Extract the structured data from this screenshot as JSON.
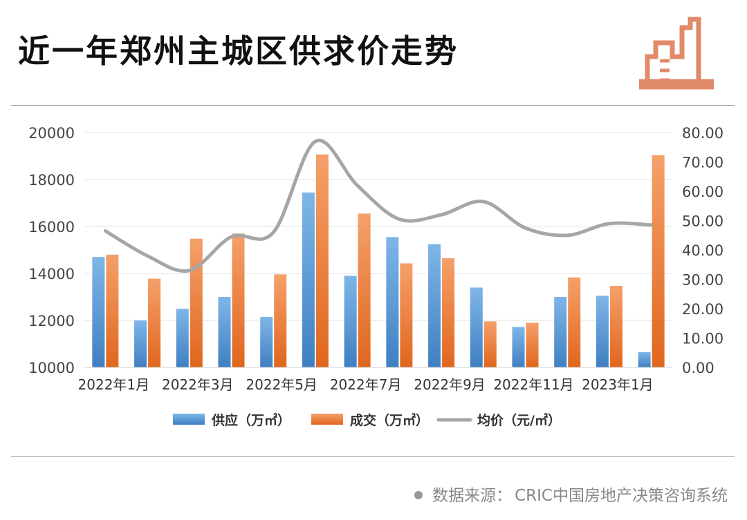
{
  "title": "近一年郑州主城区供求价走势",
  "source": {
    "label": "数据来源：",
    "text": "CRIC中国房地产决策咨询系统"
  },
  "colors": {
    "supply": "#5b9bd5",
    "deal": "#ed7d31",
    "price": "#a6a6a6",
    "logo": "#e08a6a"
  },
  "icons": [
    "building-logo-icon",
    "source-dot-icon"
  ],
  "chart_data": {
    "type": "bar",
    "title": "",
    "x_tick_labels": [
      "2022年1月",
      "2022年3月",
      "2022年5月",
      "2022年7月",
      "2022年9月",
      "2022年11月",
      "2023年1月"
    ],
    "categories": [
      "2022年1月",
      "2022年2月",
      "2022年3月",
      "2022年4月",
      "2022年5月",
      "2022年6月",
      "2022年7月",
      "2022年8月",
      "2022年9月",
      "2022年10月",
      "2022年11月",
      "2022年12月",
      "2023年1月",
      "2023年2月"
    ],
    "y_left": {
      "min": 10000,
      "max": 20000,
      "ticks": [
        10000,
        12000,
        14000,
        16000,
        18000,
        20000
      ]
    },
    "y_right": {
      "min": 0,
      "max": 80,
      "ticks": [
        "0.00",
        "10.00",
        "20.00",
        "30.00",
        "40.00",
        "50.00",
        "60.00",
        "70.00",
        "80.00"
      ]
    },
    "grid": true,
    "legend_position": "bottom",
    "series": [
      {
        "name": "供应（万㎡）",
        "type": "bar",
        "axis": "left",
        "values": [
          14700,
          12000,
          12500,
          13000,
          12150,
          17450,
          13900,
          15550,
          15250,
          13400,
          11720,
          13000,
          13050,
          10650
        ]
      },
      {
        "name": "成交（万㎡）",
        "type": "bar",
        "axis": "left",
        "values": [
          14800,
          13780,
          15480,
          15700,
          13960,
          19070,
          16550,
          14430,
          14650,
          11960,
          11900,
          13830,
          13470,
          19040
        ]
      },
      {
        "name": "均价（元/㎡）",
        "type": "line",
        "axis": "right",
        "values": [
          46.5,
          38.0,
          33.0,
          44.5,
          46.0,
          77.0,
          62.0,
          50.5,
          52.0,
          56.5,
          47.5,
          45.0,
          49.0,
          48.5
        ]
      }
    ]
  }
}
